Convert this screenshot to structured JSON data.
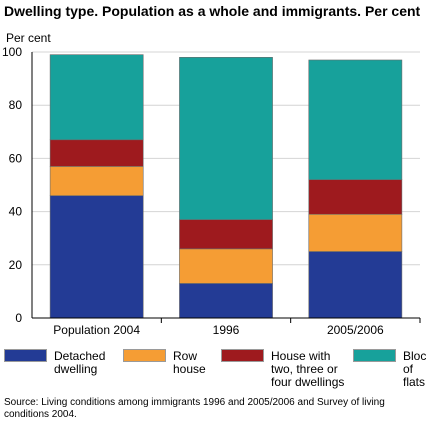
{
  "chart_data": {
    "type": "bar",
    "stacked": true,
    "title": "Dwelling type. Population as a whole and immigrants. Per cent",
    "ylabel": "Per cent",
    "xlabel": "",
    "ylim": [
      0,
      100
    ],
    "yticks": [
      0,
      20,
      40,
      60,
      80,
      100
    ],
    "grid": true,
    "legend_position": "bottom",
    "categories": [
      "Population 2004",
      "1996",
      "2005/2006"
    ],
    "series": [
      {
        "name": "Detached\ndwelling",
        "color": "#233b95",
        "values": [
          46,
          13,
          25
        ]
      },
      {
        "name": "Row\nhouse",
        "color": "#f59d34",
        "values": [
          11,
          13,
          14
        ]
      },
      {
        "name": "House with\ntwo, three or\nfour dwellings",
        "color": "#9e1a1e",
        "values": [
          10,
          11,
          13
        ]
      },
      {
        "name": "Block\nof flats",
        "color": "#17a19b",
        "values": [
          32,
          61,
          45
        ]
      }
    ],
    "source": "Source: Living conditions among immigrants 1996 and 2005/2006 and Survey of living conditions 2004."
  }
}
